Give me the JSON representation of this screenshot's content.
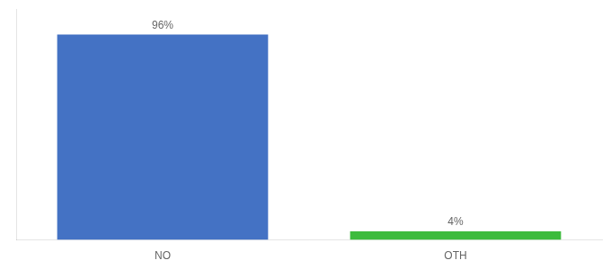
{
  "chart_data": {
    "type": "bar",
    "categories": [
      "NO",
      "OTH"
    ],
    "values": [
      96,
      4
    ],
    "value_labels": [
      "96%",
      "4%"
    ],
    "colors": [
      "#4472c4",
      "#3dbb3d"
    ],
    "ylim": [
      0,
      108
    ],
    "grid": false,
    "data_labels": true,
    "tick_labels": "x"
  }
}
